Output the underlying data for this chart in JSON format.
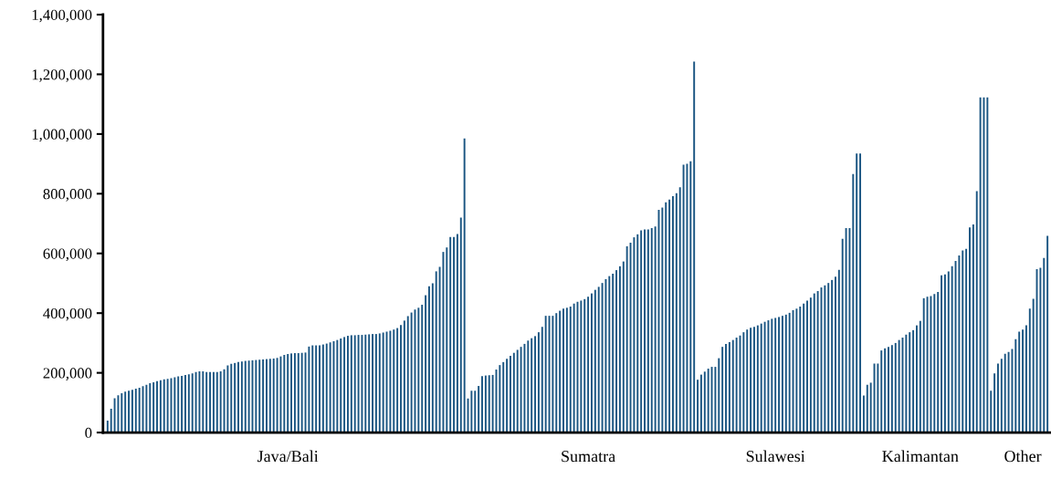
{
  "chart_data": {
    "type": "bar",
    "color": "#1a5582",
    "categories": [
      null,
      null,
      null,
      null,
      null,
      null,
      null,
      null,
      null,
      null,
      null,
      null,
      null,
      null,
      null,
      null,
      null,
      null,
      null,
      null,
      null,
      null,
      null,
      null,
      null,
      null,
      null,
      null,
      null,
      null,
      null,
      null,
      null,
      null,
      null,
      null,
      null,
      null,
      null,
      null,
      null,
      null,
      null,
      null,
      null,
      null,
      null,
      null,
      null,
      null,
      null,
      "Java/Bali",
      null,
      null,
      null,
      null,
      null,
      null,
      null,
      null,
      null,
      null,
      null,
      null,
      null,
      null,
      null,
      null,
      null,
      null,
      null,
      null,
      null,
      null,
      null,
      null,
      null,
      null,
      null,
      null,
      null,
      null,
      null,
      null,
      null,
      null,
      null,
      null,
      null,
      null,
      null,
      null,
      null,
      null,
      null,
      null,
      null,
      null,
      null,
      null,
      null,
      null,
      null,
      null,
      null,
      null,
      null,
      null,
      null,
      null,
      null,
      null,
      null,
      null,
      null,
      null,
      null,
      null,
      null,
      null,
      null,
      null,
      null,
      null,
      null,
      null,
      null,
      null,
      null,
      null,
      null,
      null,
      null,
      null,
      null,
      null,
      "Sumatra",
      null,
      null,
      null,
      null,
      null,
      null,
      null,
      null,
      null,
      null,
      null,
      null,
      null,
      null,
      null,
      null,
      null,
      null,
      null,
      null,
      null,
      null,
      null,
      null,
      null,
      null,
      null,
      null,
      null,
      null,
      null,
      null,
      null,
      null,
      null,
      null,
      null,
      null,
      null,
      null,
      null,
      null,
      null,
      null,
      null,
      null,
      null,
      null,
      null,
      null,
      null,
      null,
      "Sulawesi",
      null,
      null,
      null,
      null,
      null,
      null,
      null,
      null,
      null,
      null,
      null,
      null,
      null,
      null,
      null,
      null,
      null,
      null,
      null,
      null,
      null,
      null,
      null,
      null,
      null,
      null,
      null,
      null,
      null,
      null,
      null,
      null,
      null,
      null,
      null,
      null,
      null,
      null,
      null,
      null,
      "Kalimantan",
      null,
      null,
      null,
      null,
      null,
      null,
      null,
      null,
      null,
      null,
      null,
      null,
      null,
      null,
      null,
      null,
      null,
      null,
      null,
      null,
      null,
      null,
      null,
      null,
      null,
      null,
      null,
      null,
      "Other",
      null,
      null,
      null,
      null,
      null,
      null,
      null
    ],
    "values": [
      40000,
      80000,
      115000,
      125000,
      132000,
      137000,
      140000,
      143000,
      147000,
      150000,
      155000,
      160000,
      165000,
      168000,
      172000,
      175000,
      178000,
      180000,
      182000,
      185000,
      188000,
      190000,
      193000,
      195000,
      198000,
      203000,
      205000,
      205000,
      203000,
      203000,
      203000,
      203000,
      205000,
      212000,
      225000,
      230000,
      233000,
      236000,
      238000,
      240000,
      241000,
      242000,
      243000,
      244000,
      245000,
      246000,
      247000,
      248000,
      250000,
      255000,
      260000,
      263000,
      265000,
      266000,
      266000,
      267000,
      268000,
      288000,
      292000,
      292000,
      292000,
      295000,
      298000,
      302000,
      306000,
      310000,
      315000,
      320000,
      324000,
      326000,
      326000,
      327000,
      327000,
      328000,
      329000,
      330000,
      330000,
      332000,
      335000,
      338000,
      341000,
      345000,
      350000,
      360000,
      375000,
      390000,
      402000,
      412000,
      418000,
      428000,
      460000,
      490000,
      500000,
      540000,
      555000,
      605000,
      620000,
      655000,
      655000,
      665000,
      720000,
      985000,
      114000,
      140000,
      140000,
      156000,
      189000,
      191000,
      192000,
      193000,
      211000,
      226000,
      236000,
      247000,
      257000,
      267000,
      277000,
      287000,
      297000,
      308000,
      316000,
      323000,
      336000,
      354000,
      391000,
      391000,
      391000,
      400000,
      408000,
      415000,
      418000,
      422000,
      432000,
      438000,
      442000,
      447000,
      455000,
      466000,
      478000,
      488000,
      501000,
      514000,
      524000,
      532000,
      544000,
      557000,
      573000,
      624000,
      636000,
      654000,
      664000,
      677000,
      680000,
      680000,
      685000,
      690000,
      746000,
      754000,
      771000,
      780000,
      792000,
      802000,
      822000,
      897000,
      900000,
      909000,
      1243000,
      177000,
      194000,
      204000,
      214000,
      220000,
      220000,
      249000,
      287000,
      297000,
      303000,
      310000,
      318000,
      325000,
      336000,
      345000,
      351000,
      354000,
      359000,
      365000,
      371000,
      376000,
      381000,
      384000,
      387000,
      391000,
      395000,
      401000,
      410000,
      415000,
      422000,
      432000,
      442000,
      452000,
      466000,
      474000,
      486000,
      493000,
      501000,
      511000,
      522000,
      545000,
      649000,
      685000,
      685000,
      866000,
      935000,
      935000,
      124000,
      160000,
      167000,
      231000,
      231000,
      275000,
      282000,
      287000,
      293000,
      300000,
      310000,
      318000,
      328000,
      336000,
      343000,
      359000,
      374000,
      450000,
      455000,
      457000,
      464000,
      471000,
      527000,
      530000,
      540000,
      557000,
      575000,
      593000,
      610000,
      615000,
      687000,
      697000,
      809000,
      1123000,
      1123000,
      1123000,
      140000,
      198000,
      231000,
      247000,
      264000,
      270000,
      280000,
      313000,
      338000,
      345000,
      359000,
      415000,
      448000,
      547000,
      552000,
      585000,
      659000
    ],
    "ylim": [
      0,
      1400000
    ],
    "yticks": [
      {
        "value": 0,
        "label": "0"
      },
      {
        "value": 200000,
        "label": "200,000"
      },
      {
        "value": 400000,
        "label": "400,000"
      },
      {
        "value": 600000,
        "label": "600,000"
      },
      {
        "value": 800000,
        "label": "800,000"
      },
      {
        "value": 1000000,
        "label": "1,000,000"
      },
      {
        "value": 1200000,
        "label": "1,200,000"
      },
      {
        "value": 1400000,
        "label": "1,400,000"
      }
    ]
  }
}
